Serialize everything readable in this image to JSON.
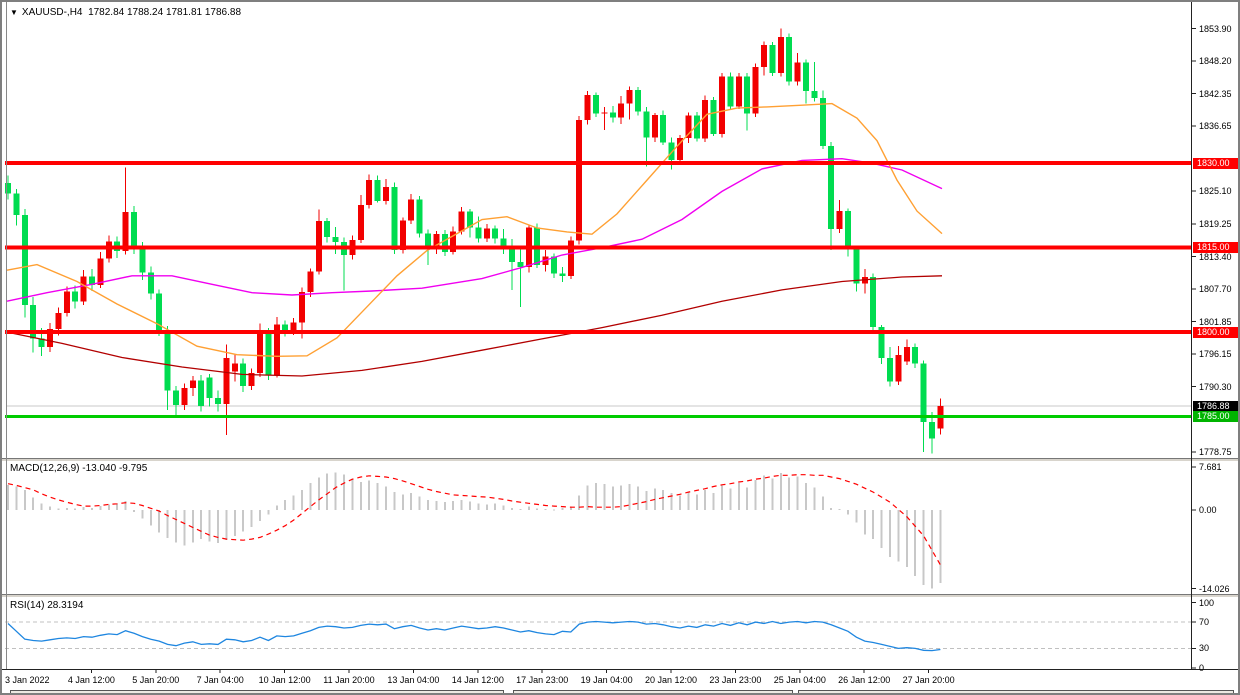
{
  "header": {
    "collapse_icon": "▼",
    "symbol_timeframe": "XAUUSD-,H4",
    "open": "1782.84",
    "high": "1788.24",
    "low": "1781.81",
    "close": "1786.88"
  },
  "colors": {
    "bull_candle": "#f20000",
    "bear_candle": "#00dc50",
    "resistance_line": "#ff0000",
    "support_line": "#00cc00",
    "last_price_line": "#c8c8c8",
    "last_price_badge_bg": "#000000",
    "resistance_badge_bg": "#ff0000",
    "support_badge_bg": "#00b400",
    "ma_fast": "#ffa033",
    "ma_mid": "#f000f0",
    "ma_slow": "#b20000",
    "macd_hist": "#c8c8c8",
    "macd_signal": "#ff0000",
    "rsi_line": "#1e86e0",
    "rsi_level_line": "#c0c0c0",
    "axis_text": "#000000"
  },
  "indicators": {
    "macd": {
      "name": "MACD(12,26,9)",
      "main_value": "-13.040",
      "signal_value": "-9.795",
      "scale": [
        {
          "t": "7.681",
          "v": 7.681
        },
        {
          "t": "0.00",
          "v": 0
        },
        {
          "t": "-14.026",
          "v": -14.026
        }
      ]
    },
    "rsi": {
      "name": "RSI(14)",
      "value": "28.3194",
      "levels": [
        {
          "t": "100",
          "v": 100,
          "line": false
        },
        {
          "t": "70",
          "v": 70,
          "line": true
        },
        {
          "t": "30",
          "v": 30,
          "line": true
        },
        {
          "t": "0",
          "v": 0,
          "line": false
        }
      ]
    }
  },
  "price_axis": {
    "ticks": [
      {
        "t": "1853.90",
        "p": 1853.9
      },
      {
        "t": "1848.20",
        "p": 1848.2
      },
      {
        "t": "1842.35",
        "p": 1842.35
      },
      {
        "t": "1836.65",
        "p": 1836.65
      },
      {
        "t": "1825.10",
        "p": 1825.1
      },
      {
        "t": "1819.25",
        "p": 1819.25
      },
      {
        "t": "1813.40",
        "p": 1813.4
      },
      {
        "t": "1807.70",
        "p": 1807.7
      },
      {
        "t": "1801.85",
        "p": 1801.85
      },
      {
        "t": "1796.15",
        "p": 1796.15
      },
      {
        "t": "1790.30",
        "p": 1790.3
      },
      {
        "t": "1778.75",
        "p": 1778.75
      }
    ],
    "badges": [
      {
        "t": "1830.00",
        "p": 1830.0,
        "type": "resistance"
      },
      {
        "t": "1815.00",
        "p": 1815.0,
        "type": "resistance"
      },
      {
        "t": "1800.00",
        "p": 1800.0,
        "type": "resistance"
      },
      {
        "t": "1786.88",
        "p": 1786.88,
        "type": "last"
      },
      {
        "t": "1785.00",
        "p": 1785.0,
        "type": "support"
      }
    ]
  },
  "time_axis": {
    "labels": [
      "3 Jan 2022",
      "4 Jan 12:00",
      "5 Jan 20:00",
      "7 Jan 04:00",
      "10 Jan 12:00",
      "11 Jan 20:00",
      "13 Jan 04:00",
      "14 Jan 12:00",
      "17 Jan 23:00",
      "19 Jan 04:00",
      "20 Jan 12:00",
      "23 Jan 23:00",
      "25 Jan 04:00",
      "26 Jan 12:00",
      "27 Jan 20:00"
    ]
  },
  "chart_data": {
    "type": "candlestick",
    "symbol": "XAUUSD-",
    "timeframe": "H4",
    "y_range": [
      1778.75,
      1853.9
    ],
    "horizontal_levels": [
      {
        "price": 1830.0,
        "kind": "resistance"
      },
      {
        "price": 1815.0,
        "kind": "resistance"
      },
      {
        "price": 1800.0,
        "kind": "resistance"
      },
      {
        "price": 1785.0,
        "kind": "support"
      },
      {
        "price": 1786.88,
        "kind": "last-price"
      }
    ],
    "candles_ohlc": [
      [
        1826.5,
        1827.8,
        1823.6,
        1824.6
      ],
      [
        1824.6,
        1825.4,
        1818.9,
        1820.8
      ],
      [
        1820.8,
        1821.9,
        1802.6,
        1804.8
      ],
      [
        1804.8,
        1806.2,
        1796.4,
        1798.9
      ],
      [
        1798.9,
        1800.7,
        1795.8,
        1797.4
      ],
      [
        1797.4,
        1801.6,
        1796.5,
        1800.6
      ],
      [
        1800.6,
        1804.4,
        1799.4,
        1803.4
      ],
      [
        1803.4,
        1808.1,
        1802.8,
        1807.2
      ],
      [
        1807.2,
        1808.3,
        1804.2,
        1805.4
      ],
      [
        1805.4,
        1811.0,
        1804.8,
        1809.9
      ],
      [
        1809.9,
        1811.2,
        1807.3,
        1808.4
      ],
      [
        1808.4,
        1814.2,
        1807.8,
        1813.1
      ],
      [
        1813.1,
        1817.2,
        1812.4,
        1816.1
      ],
      [
        1816.1,
        1817.0,
        1813.2,
        1814.4
      ],
      [
        1814.4,
        1829.2,
        1813.8,
        1821.3
      ],
      [
        1821.3,
        1822.4,
        1813.9,
        1815.2
      ],
      [
        1815.2,
        1816.0,
        1809.3,
        1810.6
      ],
      [
        1810.6,
        1811.7,
        1805.8,
        1806.9
      ],
      [
        1806.9,
        1807.6,
        1799.3,
        1800.4
      ],
      [
        1800.4,
        1801.1,
        1786.2,
        1789.6
      ],
      [
        1789.6,
        1790.4,
        1785.2,
        1787.1
      ],
      [
        1787.1,
        1790.9,
        1786.2,
        1790.1
      ],
      [
        1790.1,
        1792.2,
        1788.7,
        1791.4
      ],
      [
        1791.4,
        1792.4,
        1785.9,
        1786.9
      ],
      [
        1791.9,
        1792.6,
        1786.8,
        1788.3
      ],
      [
        1788.3,
        1789.6,
        1785.9,
        1787.2
      ],
      [
        1787.2,
        1797.8,
        1781.7,
        1795.4
      ],
      [
        1793.0,
        1796.1,
        1791.2,
        1794.4
      ],
      [
        1794.4,
        1795.3,
        1789.4,
        1790.4
      ],
      [
        1790.4,
        1793.5,
        1789.7,
        1792.7
      ],
      [
        1792.7,
        1801.5,
        1792.0,
        1799.9
      ],
      [
        1799.9,
        1800.7,
        1791.5,
        1792.3
      ],
      [
        1792.3,
        1802.7,
        1791.9,
        1801.4
      ],
      [
        1801.4,
        1802.1,
        1799.2,
        1800.1
      ],
      [
        1800.1,
        1802.5,
        1799.5,
        1801.7
      ],
      [
        1801.7,
        1807.9,
        1798.9,
        1807.1
      ],
      [
        1807.1,
        1811.3,
        1806.2,
        1810.8
      ],
      [
        1810.8,
        1821.8,
        1810.2,
        1819.7
      ],
      [
        1819.7,
        1820.3,
        1815.9,
        1816.9
      ],
      [
        1816.9,
        1818.7,
        1813.9,
        1816.0
      ],
      [
        1816.0,
        1816.8,
        1807.4,
        1813.7
      ],
      [
        1813.7,
        1817.2,
        1812.9,
        1816.4
      ],
      [
        1816.4,
        1824.4,
        1815.8,
        1822.6
      ],
      [
        1822.6,
        1828.0,
        1822.0,
        1827.0
      ],
      [
        1827.0,
        1827.8,
        1823.0,
        1823.3
      ],
      [
        1823.3,
        1827.2,
        1822.7,
        1825.8
      ],
      [
        1825.8,
        1826.6,
        1813.9,
        1814.6
      ],
      [
        1814.6,
        1820.4,
        1814.0,
        1819.8
      ],
      [
        1819.8,
        1824.5,
        1819.2,
        1823.6
      ],
      [
        1823.6,
        1824.2,
        1816.8,
        1817.5
      ],
      [
        1817.5,
        1818.2,
        1811.9,
        1814.8
      ],
      [
        1814.8,
        1818.0,
        1813.9,
        1817.4
      ],
      [
        1817.4,
        1818.1,
        1813.5,
        1814.2
      ],
      [
        1814.2,
        1818.8,
        1813.8,
        1817.9
      ],
      [
        1817.9,
        1822.2,
        1817.3,
        1821.4
      ],
      [
        1821.4,
        1821.9,
        1816.8,
        1818.6
      ],
      [
        1818.6,
        1820.5,
        1815.9,
        1816.6
      ],
      [
        1816.6,
        1819.2,
        1816.0,
        1818.4
      ],
      [
        1818.4,
        1818.9,
        1815.7,
        1816.6
      ],
      [
        1816.6,
        1818.3,
        1813.9,
        1814.8
      ],
      [
        1814.8,
        1816.5,
        1807.5,
        1812.5
      ],
      [
        1812.5,
        1815.3,
        1804.5,
        1811.6
      ],
      [
        1811.6,
        1819.0,
        1810.6,
        1818.6
      ],
      [
        1818.6,
        1819.3,
        1811.4,
        1811.9
      ],
      [
        1811.9,
        1814.6,
        1810.8,
        1813.4
      ],
      [
        1813.4,
        1814.0,
        1809.6,
        1810.4
      ],
      [
        1810.4,
        1811.6,
        1808.9,
        1810.0
      ],
      [
        1810.0,
        1817.0,
        1809.4,
        1816.3
      ],
      [
        1816.3,
        1838.4,
        1815.6,
        1837.7
      ],
      [
        1837.7,
        1842.8,
        1836.9,
        1842.1
      ],
      [
        1842.1,
        1842.6,
        1838.2,
        1838.8
      ],
      [
        1838.8,
        1840.0,
        1835.9,
        1839.0
      ],
      [
        1839.0,
        1840.2,
        1837.2,
        1838.1
      ],
      [
        1838.1,
        1841.9,
        1837.0,
        1840.6
      ],
      [
        1840.6,
        1843.6,
        1837.8,
        1843.0
      ],
      [
        1843.0,
        1843.5,
        1838.5,
        1839.2
      ],
      [
        1839.2,
        1840.0,
        1829.4,
        1834.6
      ],
      [
        1834.6,
        1838.9,
        1833.8,
        1838.6
      ],
      [
        1838.6,
        1839.4,
        1833.2,
        1833.7
      ],
      [
        1833.7,
        1834.6,
        1828.9,
        1830.6
      ],
      [
        1830.6,
        1835.0,
        1830.0,
        1834.5
      ],
      [
        1834.5,
        1839.0,
        1833.6,
        1838.5
      ],
      [
        1838.5,
        1839.1,
        1833.9,
        1834.4
      ],
      [
        1834.4,
        1842.0,
        1833.8,
        1841.2
      ],
      [
        1841.2,
        1841.8,
        1834.8,
        1835.2
      ],
      [
        1835.2,
        1846.0,
        1834.6,
        1845.4
      ],
      [
        1845.4,
        1846.1,
        1839.5,
        1840.1
      ],
      [
        1840.1,
        1846.0,
        1839.6,
        1845.4
      ],
      [
        1845.4,
        1846.0,
        1835.8,
        1838.8
      ],
      [
        1838.8,
        1847.7,
        1838.2,
        1847.1
      ],
      [
        1847.1,
        1851.6,
        1845.6,
        1851.0
      ],
      [
        1851.0,
        1851.5,
        1845.5,
        1846.0
      ],
      [
        1846.0,
        1853.9,
        1845.4,
        1852.4
      ],
      [
        1852.4,
        1853.0,
        1843.8,
        1844.5
      ],
      [
        1844.5,
        1849.6,
        1843.8,
        1847.9
      ],
      [
        1847.9,
        1848.4,
        1840.6,
        1842.8
      ],
      [
        1842.8,
        1848.0,
        1841.0,
        1841.6
      ],
      [
        1841.6,
        1842.9,
        1832.5,
        1833.1
      ],
      [
        1833.1,
        1833.8,
        1814.6,
        1818.3
      ],
      [
        1818.3,
        1823.5,
        1817.6,
        1821.5
      ],
      [
        1821.5,
        1822.0,
        1813.4,
        1814.9
      ],
      [
        1814.9,
        1815.4,
        1807.2,
        1808.6
      ],
      [
        1808.6,
        1811.2,
        1806.9,
        1809.8
      ],
      [
        1809.8,
        1810.4,
        1799.8,
        1800.9
      ],
      [
        1800.9,
        1801.3,
        1794.3,
        1795.4
      ],
      [
        1795.4,
        1797.4,
        1790.3,
        1791.2
      ],
      [
        1791.2,
        1797.5,
        1790.6,
        1795.9
      ],
      [
        1794.8,
        1798.7,
        1794.2,
        1797.4
      ],
      [
        1797.4,
        1798.0,
        1793.6,
        1794.4
      ],
      [
        1794.4,
        1795.0,
        1778.7,
        1784.0
      ],
      [
        1784.0,
        1785.8,
        1778.4,
        1781.1
      ],
      [
        1782.84,
        1788.24,
        1781.81,
        1786.88
      ]
    ],
    "ma_fast_orange": [
      [
        5,
        1811
      ],
      [
        35,
        1812
      ],
      [
        75,
        1809
      ],
      [
        115,
        1805
      ],
      [
        155,
        1801.5
      ],
      [
        195,
        1797.5
      ],
      [
        235,
        1796
      ],
      [
        275,
        1795.7
      ],
      [
        305,
        1795.8
      ],
      [
        335,
        1799
      ],
      [
        365,
        1804.5
      ],
      [
        395,
        1810
      ],
      [
        425,
        1814.5
      ],
      [
        455,
        1817.5
      ],
      [
        480,
        1820
      ],
      [
        505,
        1820.5
      ],
      [
        535,
        1818.5
      ],
      [
        565,
        1817.8
      ],
      [
        590,
        1817.4
      ],
      [
        615,
        1821
      ],
      [
        645,
        1827
      ],
      [
        675,
        1833
      ],
      [
        705,
        1838.7
      ],
      [
        735,
        1839.8
      ],
      [
        765,
        1840
      ],
      [
        800,
        1840.3
      ],
      [
        830,
        1840.6
      ],
      [
        855,
        1838
      ],
      [
        875,
        1834
      ],
      [
        895,
        1827
      ],
      [
        915,
        1821.5
      ],
      [
        940,
        1817.5
      ]
    ],
    "ma_mid_magenta": [
      [
        5,
        1805.5
      ],
      [
        45,
        1807
      ],
      [
        90,
        1808.5
      ],
      [
        130,
        1810
      ],
      [
        170,
        1810
      ],
      [
        210,
        1808.5
      ],
      [
        250,
        1807
      ],
      [
        290,
        1806.6
      ],
      [
        330,
        1807
      ],
      [
        370,
        1807.3
      ],
      [
        420,
        1807.8
      ],
      [
        480,
        1809.5
      ],
      [
        520,
        1811.5
      ],
      [
        560,
        1813.7
      ],
      [
        600,
        1815
      ],
      [
        640,
        1816.5
      ],
      [
        680,
        1820
      ],
      [
        720,
        1825
      ],
      [
        760,
        1829
      ],
      [
        800,
        1830.5
      ],
      [
        840,
        1830.8
      ],
      [
        870,
        1830
      ],
      [
        900,
        1828.8
      ],
      [
        940,
        1825.5
      ]
    ],
    "ma_slow_darkred": [
      [
        5,
        1800
      ],
      [
        60,
        1798
      ],
      [
        120,
        1795.5
      ],
      [
        180,
        1793.8
      ],
      [
        240,
        1792.5
      ],
      [
        300,
        1792.2
      ],
      [
        360,
        1793.2
      ],
      [
        420,
        1794.8
      ],
      [
        480,
        1796.8
      ],
      [
        540,
        1798.8
      ],
      [
        600,
        1800.8
      ],
      [
        660,
        1803
      ],
      [
        720,
        1805.5
      ],
      [
        780,
        1807.5
      ],
      [
        840,
        1809
      ],
      [
        900,
        1809.8
      ],
      [
        940,
        1810
      ]
    ],
    "macd_histogram": [
      4.5,
      4.2,
      3.6,
      2.2,
      1.2,
      0.6,
      0.3,
      0.4,
      0.3,
      0.5,
      0.4,
      0.7,
      1.0,
      1.2,
      1.6,
      -0.4,
      -1.5,
      -2.8,
      -4.0,
      -5.0,
      -5.8,
      -6.3,
      -5.8,
      -5.2,
      -5.6,
      -5.9,
      -5.4,
      -4.6,
      -3.8,
      -3.0,
      -2.0,
      -0.8,
      0.8,
      1.8,
      2.6,
      3.6,
      4.8,
      5.8,
      6.5,
      6.7,
      6.3,
      5.6,
      5.0,
      5.3,
      4.8,
      4.2,
      3.2,
      2.8,
      3.0,
      2.4,
      1.8,
      1.6,
      1.4,
      1.6,
      1.8,
      1.5,
      1.2,
      1.0,
      1.2,
      0.8,
      0.4,
      0.2,
      0.6,
      0.3,
      0.2,
      0.1,
      0.4,
      0.6,
      2.6,
      4.4,
      4.8,
      4.6,
      4.2,
      4.4,
      4.6,
      4.2,
      3.4,
      3.8,
      3.6,
      3.0,
      2.6,
      3.2,
      2.8,
      3.6,
      3.0,
      4.4,
      3.8,
      4.8,
      4.0,
      5.4,
      6.2,
      5.6,
      6.6,
      5.8,
      6.0,
      4.8,
      4.0,
      2.4,
      0.4,
      0.2,
      -0.8,
      -2.2,
      -4.4,
      -5.2,
      -6.8,
      -8.4,
      -9.2,
      -10.2,
      -11.8,
      -13.4,
      -14.0,
      -13.0
    ],
    "macd_signal": [
      4.7,
      4.4,
      4.0,
      3.6,
      2.9,
      2.3,
      1.8,
      1.4,
      1.0,
      0.7,
      0.7,
      0.8,
      1.0,
      1.1,
      1.3,
      1.2,
      0.8,
      0.3,
      -0.2,
      -1.0,
      -1.7,
      -2.4,
      -3.1,
      -3.8,
      -4.5,
      -4.9,
      -5.2,
      -5.3,
      -5.4,
      -5.2,
      -4.9,
      -4.3,
      -3.6,
      -2.8,
      -1.8,
      -0.6,
      0.6,
      1.8,
      2.9,
      4.0,
      4.8,
      5.5,
      5.9,
      6.1,
      6.0,
      5.9,
      5.6,
      5.2,
      4.7,
      4.2,
      3.7,
      3.3,
      3.0,
      2.7,
      2.6,
      2.5,
      2.4,
      2.3,
      2.1,
      1.9,
      1.6,
      1.4,
      1.2,
      1.0,
      0.8,
      0.7,
      0.6,
      0.5,
      0.5,
      0.6,
      0.5,
      0.5,
      0.5,
      0.6,
      0.9,
      1.2,
      1.5,
      1.9,
      2.2,
      2.5,
      2.8,
      3.2,
      3.5,
      3.8,
      4.2,
      4.5,
      4.7,
      5.0,
      5.2,
      5.5,
      5.7,
      6.0,
      6.2,
      6.2,
      6.3,
      6.3,
      6.2,
      6.2,
      5.9,
      5.6,
      5.1,
      4.6,
      3.9,
      3.2,
      2.3,
      1.4,
      0.1,
      -1.2,
      -2.9,
      -4.6,
      -7.2,
      -9.8
    ],
    "rsi_values": [
      68,
      56,
      44,
      42,
      41,
      43,
      45,
      46,
      45,
      48,
      47,
      50,
      52,
      51,
      57,
      53,
      48,
      44,
      41,
      36,
      34,
      38,
      40,
      36,
      37,
      36,
      44,
      43,
      40,
      42,
      47,
      42,
      49,
      48,
      49,
      53,
      57,
      62,
      64,
      63,
      61,
      62,
      65,
      67,
      66,
      67,
      60,
      63,
      65,
      61,
      58,
      60,
      58,
      61,
      64,
      62,
      60,
      61,
      63,
      61,
      58,
      55,
      57,
      54,
      52,
      51,
      56,
      55,
      67,
      70,
      71,
      70,
      69,
      70,
      71,
      70,
      67,
      68,
      66,
      63,
      61,
      64,
      62,
      66,
      64,
      68,
      65,
      69,
      66,
      70,
      68,
      71,
      68,
      70,
      71,
      69,
      71,
      70,
      66,
      61,
      56,
      47,
      41,
      39,
      36,
      33,
      30,
      31,
      30,
      27,
      26.5,
      28.3
    ]
  }
}
